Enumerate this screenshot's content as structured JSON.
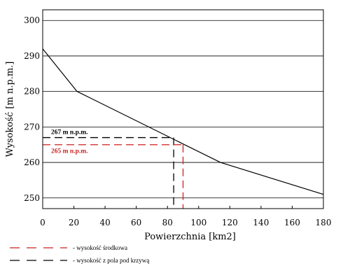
{
  "chart_data": {
    "type": "line",
    "xlabel": "Powierzchnia [km2]",
    "ylabel": "Wysokość [m n.p.m.]",
    "xlim": [
      0,
      180
    ],
    "ylim": [
      247,
      303
    ],
    "x_ticks": [
      0,
      20,
      40,
      60,
      80,
      100,
      120,
      140,
      160,
      180
    ],
    "y_ticks": [
      250,
      260,
      270,
      280,
      290,
      300
    ],
    "grid": "horizontal",
    "series": [
      {
        "x": [
          0,
          22,
          114,
          180
        ],
        "y": [
          292,
          280,
          260,
          251
        ],
        "color": "#000000"
      }
    ],
    "markers": [
      {
        "label": "267 m n.p.m.",
        "y": 267,
        "x": 84,
        "color": "#000000"
      },
      {
        "label": "265 m n.p.m.",
        "y": 265,
        "x": 90,
        "color": "#cc2222"
      }
    ],
    "legend": [
      {
        "label": "- wysokość środkowa",
        "color": "#cc2222"
      },
      {
        "label": "- wysokość z pola pod krzywą",
        "color": "#000000"
      }
    ]
  }
}
